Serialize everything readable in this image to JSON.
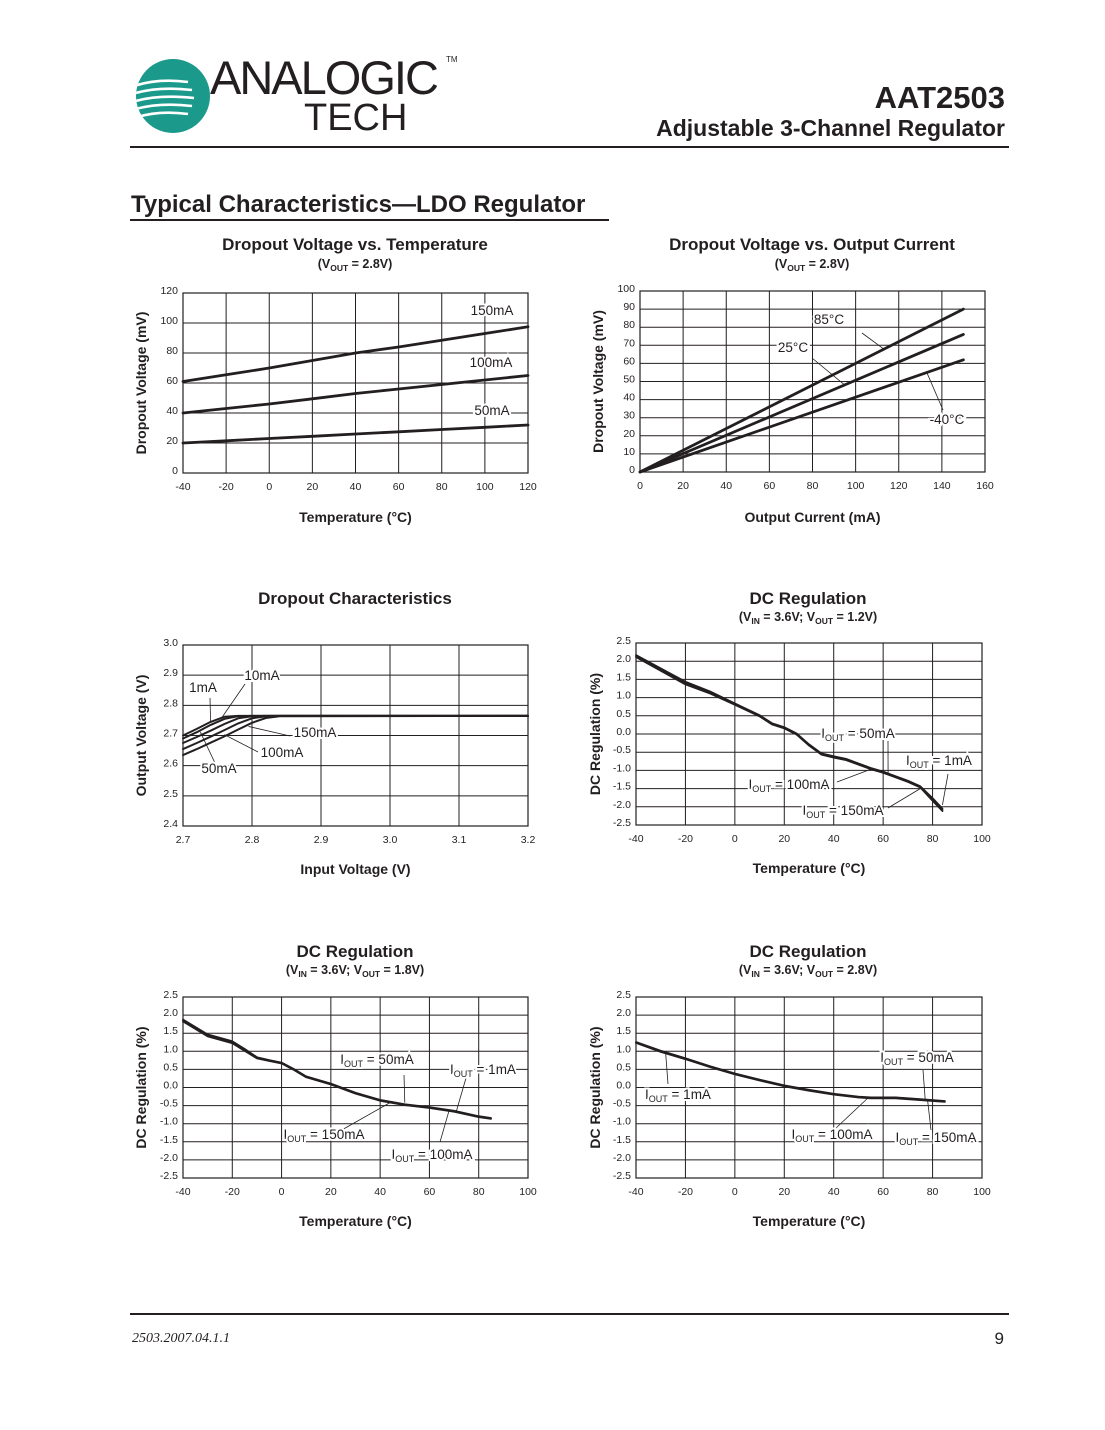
{
  "header": {
    "logo_text": "ANALOGIC",
    "logo_subtext": "TECH",
    "logo_tm": "TM",
    "part_number": "AAT2503",
    "product_title": "Adjustable 3-Channel Regulator",
    "brand_color": "#1b9a8c"
  },
  "section_title": "Typical Characteristics—LDO Regulator",
  "footer": {
    "doc_code": "2503.2007.04.1.1",
    "page_number": "9"
  },
  "chart_data": [
    {
      "type": "line",
      "title": "Dropout Voltage vs. Temperature",
      "subtitle": [
        {
          "t": "(V"
        },
        {
          "t": "OUT",
          "sub": true
        },
        {
          "t": " = 2.8V)"
        }
      ],
      "xlabel": "Temperature (°C)",
      "ylabel": "Dropout Voltage (mV)",
      "xlim": [
        -40,
        120
      ],
      "ylim": [
        0,
        120
      ],
      "grid": true,
      "xticks": [
        "-40",
        "-20",
        "0",
        "20",
        "40",
        "60",
        "80",
        "100",
        "120"
      ],
      "yticks": [
        "0",
        "20",
        "40",
        "60",
        "80",
        "100",
        "120"
      ],
      "x": [
        -40,
        -20,
        0,
        20,
        40,
        60,
        80,
        100,
        120
      ],
      "series": [
        {
          "name": "150mA",
          "values": [
            61,
            65.5,
            70,
            75,
            80,
            84,
            88.5,
            93,
            97.5
          ]
        },
        {
          "name": "100mA",
          "values": [
            40,
            43,
            46,
            49.5,
            53,
            56,
            59,
            62,
            65
          ]
        },
        {
          "name": "50mA",
          "values": [
            20,
            21.5,
            23,
            24.5,
            26,
            27.5,
            29,
            30.5,
            32
          ]
        }
      ],
      "annotations": [
        {
          "parts": [
            {
              "t": "150mA"
            }
          ]
        },
        {
          "parts": [
            {
              "t": "100mA"
            }
          ]
        },
        {
          "parts": [
            {
              "t": "50mA"
            }
          ]
        }
      ]
    },
    {
      "type": "line",
      "title": "Dropout Voltage vs. Output Current",
      "subtitle": [
        {
          "t": "(V"
        },
        {
          "t": "OUT",
          "sub": true
        },
        {
          "t": " = 2.8V)"
        }
      ],
      "xlabel": "Output Current (mA)",
      "ylabel": "Dropout Voltage (mV)",
      "xlim": [
        0,
        160
      ],
      "ylim": [
        0,
        100
      ],
      "grid": true,
      "xticks": [
        "0",
        "20",
        "40",
        "60",
        "80",
        "100",
        "120",
        "140",
        "160"
      ],
      "yticks": [
        "0",
        "10",
        "20",
        "30",
        "40",
        "50",
        "60",
        "70",
        "80",
        "90",
        "100"
      ],
      "x": [
        0,
        150
      ],
      "series": [
        {
          "name": "85°C",
          "values": [
            0,
            90
          ]
        },
        {
          "name": "25°C",
          "values": [
            0,
            76
          ]
        },
        {
          "name": "-40°C",
          "values": [
            0,
            62
          ]
        }
      ],
      "annotations": [
        {
          "parts": [
            {
              "t": "85°C"
            }
          ]
        },
        {
          "parts": [
            {
              "t": "25°C"
            }
          ]
        },
        {
          "parts": [
            {
              "t": "-40°C"
            }
          ]
        }
      ]
    },
    {
      "type": "line",
      "title": "Dropout Characteristics",
      "subtitle": [],
      "xlabel": "Input Voltage (V)",
      "ylabel": "Output Voltage (V)",
      "xlim": [
        2.7,
        3.2
      ],
      "ylim": [
        2.4,
        3.0
      ],
      "grid": true,
      "xticks": [
        "2.7",
        "2.8",
        "2.9",
        "3.0",
        "3.1",
        "3.2"
      ],
      "yticks": [
        "2.4",
        "2.5",
        "2.6",
        "2.7",
        "2.8",
        "2.9",
        "3.0"
      ],
      "x": [
        2.7,
        2.72,
        2.74,
        2.76,
        2.78,
        2.8,
        2.82,
        2.84,
        3.2
      ],
      "series": [
        {
          "name": "1mA",
          "values": [
            2.7,
            2.722,
            2.745,
            2.762,
            2.765,
            2.765,
            2.765,
            2.765,
            2.765
          ]
        },
        {
          "name": "10mA",
          "values": [
            2.69,
            2.711,
            2.735,
            2.755,
            2.764,
            2.765,
            2.765,
            2.765,
            2.765
          ]
        },
        {
          "name": "50mA",
          "values": [
            2.675,
            2.695,
            2.716,
            2.738,
            2.757,
            2.764,
            2.765,
            2.765,
            2.765
          ]
        },
        {
          "name": "100mA",
          "values": [
            2.655,
            2.675,
            2.696,
            2.718,
            2.74,
            2.757,
            2.764,
            2.765,
            2.765
          ]
        },
        {
          "name": "150mA",
          "values": [
            2.635,
            2.655,
            2.676,
            2.697,
            2.72,
            2.742,
            2.758,
            2.764,
            2.765
          ]
        }
      ],
      "annotations": [
        {
          "parts": [
            {
              "t": "1mA"
            }
          ]
        },
        {
          "parts": [
            {
              "t": "10mA"
            }
          ]
        },
        {
          "parts": [
            {
              "t": "150mA"
            }
          ]
        },
        {
          "parts": [
            {
              "t": "100mA"
            }
          ]
        },
        {
          "parts": [
            {
              "t": "50mA"
            }
          ]
        }
      ]
    },
    {
      "type": "line",
      "title": "DC Regulation",
      "subtitle": [
        {
          "t": "(V"
        },
        {
          "t": "IN",
          "sub": true
        },
        {
          "t": " = 3.6V; V"
        },
        {
          "t": "OUT",
          "sub": true
        },
        {
          "t": " = 1.2V)"
        }
      ],
      "xlabel": "Temperature (°C)",
      "ylabel": "DC Regulation (%)",
      "xlim": [
        -40,
        100
      ],
      "ylim": [
        -2.5,
        2.5
      ],
      "grid": true,
      "xticks": [
        "-40",
        "-20",
        "0",
        "20",
        "40",
        "60",
        "80",
        "100"
      ],
      "yticks": [
        "-2.5",
        "-2.0",
        "-1.5",
        "-1.0",
        "-0.5",
        "0.0",
        "0.5",
        "1.0",
        "1.5",
        "2.0",
        "2.5"
      ],
      "x": [
        -40,
        -20,
        -10,
        0,
        10,
        15,
        20,
        25,
        30,
        35,
        40,
        45,
        55,
        60,
        70,
        75,
        80,
        84
      ],
      "series": [
        {
          "name": "IOUT = 1mA",
          "values": [
            2.17,
            1.44,
            1.17,
            0.84,
            0.52,
            0.3,
            0.19,
            0.02,
            -0.28,
            -0.53,
            -0.61,
            -0.68,
            -0.93,
            -1.03,
            -1.28,
            -1.43,
            -1.76,
            -2.05
          ]
        },
        {
          "name": "IOUT = 50mA",
          "values": [
            2.15,
            1.42,
            1.15,
            0.82,
            0.5,
            0.28,
            0.17,
            0.0,
            -0.3,
            -0.55,
            -0.63,
            -0.7,
            -0.95,
            -1.05,
            -1.3,
            -1.45,
            -1.8,
            -2.08
          ]
        },
        {
          "name": "IOUT = 100mA",
          "values": [
            2.13,
            1.39,
            1.13,
            0.81,
            0.49,
            0.27,
            0.16,
            -0.01,
            -0.31,
            -0.56,
            -0.64,
            -0.71,
            -0.96,
            -1.06,
            -1.31,
            -1.46,
            -1.82,
            -2.1
          ]
        },
        {
          "name": "IOUT = 150mA",
          "values": [
            2.11,
            1.36,
            1.11,
            0.8,
            0.48,
            0.26,
            0.15,
            -0.02,
            -0.32,
            -0.57,
            -0.65,
            -0.72,
            -0.97,
            -1.07,
            -1.32,
            -1.47,
            -1.84,
            -2.12
          ]
        }
      ],
      "annotations": [
        {
          "parts": [
            {
              "t": "I"
            },
            {
              "t": "OUT",
              "sub": true
            },
            {
              "t": " = 50mA"
            }
          ]
        },
        {
          "parts": [
            {
              "t": "I"
            },
            {
              "t": "OUT",
              "sub": true
            },
            {
              "t": " = 1mA"
            }
          ]
        },
        {
          "parts": [
            {
              "t": "I"
            },
            {
              "t": "OUT",
              "sub": true
            },
            {
              "t": " = 100mA"
            }
          ]
        },
        {
          "parts": [
            {
              "t": "I"
            },
            {
              "t": "OUT",
              "sub": true
            },
            {
              "t": " = 150mA"
            }
          ]
        }
      ]
    },
    {
      "type": "line",
      "title": "DC Regulation",
      "subtitle": [
        {
          "t": "(V"
        },
        {
          "t": "IN",
          "sub": true
        },
        {
          "t": " = 3.6V; V"
        },
        {
          "t": "OUT",
          "sub": true
        },
        {
          "t": " = 1.8V)"
        }
      ],
      "xlabel": "Temperature (°C)",
      "ylabel": "DC Regulation (%)",
      "xlim": [
        -40,
        100
      ],
      "ylim": [
        -2.5,
        2.5
      ],
      "grid": true,
      "xticks": [
        "-40",
        "-20",
        "0",
        "20",
        "40",
        "60",
        "80",
        "100"
      ],
      "yticks": [
        "-2.5",
        "-2.0",
        "-1.5",
        "-1.0",
        "-0.5",
        "0.0",
        "0.5",
        "1.0",
        "1.5",
        "2.0",
        "2.5"
      ],
      "x": [
        -40,
        -30,
        -20,
        -15,
        -10,
        -5,
        0,
        5,
        10,
        20,
        30,
        40,
        50,
        60,
        70,
        80,
        85
      ],
      "series": [
        {
          "name": "IOUT = 1mA",
          "values": [
            1.88,
            1.47,
            1.28,
            1.07,
            0.84,
            0.76,
            0.69,
            0.51,
            0.31,
            0.11,
            -0.14,
            -0.34,
            -0.46,
            -0.54,
            -0.64,
            -0.79,
            -0.84
          ]
        },
        {
          "name": "IOUT = 50mA",
          "values": [
            1.86,
            1.45,
            1.26,
            1.05,
            0.82,
            0.75,
            0.68,
            0.5,
            0.3,
            0.1,
            -0.15,
            -0.35,
            -0.47,
            -0.55,
            -0.65,
            -0.8,
            -0.85
          ]
        },
        {
          "name": "IOUT = 100mA",
          "values": [
            1.84,
            1.43,
            1.24,
            1.03,
            0.81,
            0.74,
            0.67,
            0.49,
            0.29,
            0.09,
            -0.16,
            -0.36,
            -0.48,
            -0.56,
            -0.66,
            -0.81,
            -0.86
          ]
        },
        {
          "name": "IOUT = 150mA",
          "values": [
            1.82,
            1.41,
            1.22,
            1.01,
            0.8,
            0.73,
            0.66,
            0.48,
            0.28,
            0.08,
            -0.17,
            -0.37,
            -0.49,
            -0.57,
            -0.67,
            -0.82,
            -0.87
          ]
        }
      ],
      "annotations": [
        {
          "parts": [
            {
              "t": "I"
            },
            {
              "t": "OUT",
              "sub": true
            },
            {
              "t": " = 50mA"
            }
          ]
        },
        {
          "parts": [
            {
              "t": "I"
            },
            {
              "t": "OUT",
              "sub": true
            },
            {
              "t": " = 1mA"
            }
          ]
        },
        {
          "parts": [
            {
              "t": "I"
            },
            {
              "t": "OUT",
              "sub": true
            },
            {
              "t": " = 150mA"
            }
          ]
        },
        {
          "parts": [
            {
              "t": "I"
            },
            {
              "t": "OUT",
              "sub": true
            },
            {
              "t": " = 100mA"
            }
          ]
        }
      ]
    },
    {
      "type": "line",
      "title": "DC Regulation",
      "subtitle": [
        {
          "t": "(V"
        },
        {
          "t": "IN",
          "sub": true
        },
        {
          "t": " = 3.6V; V"
        },
        {
          "t": "OUT",
          "sub": true
        },
        {
          "t": " = 2.8V)"
        }
      ],
      "xlabel": "Temperature (°C)",
      "ylabel": "DC Regulation (%)",
      "xlim": [
        -40,
        100
      ],
      "ylim": [
        -2.5,
        2.5
      ],
      "grid": true,
      "xticks": [
        "-40",
        "-20",
        "0",
        "20",
        "40",
        "60",
        "80",
        "100"
      ],
      "yticks": [
        "-2.5",
        "-2.0",
        "-1.5",
        "-1.0",
        "-0.5",
        "0.0",
        "0.5",
        "1.0",
        "1.5",
        "2.0",
        "2.5"
      ],
      "x": [
        -40,
        -30,
        -20,
        -10,
        0,
        10,
        20,
        30,
        40,
        50,
        55,
        65,
        75,
        85
      ],
      "series": [
        {
          "name": "IOUT = 1mA",
          "values": [
            1.26,
            1.02,
            0.81,
            0.59,
            0.39,
            0.22,
            0.06,
            -0.06,
            -0.17,
            -0.25,
            -0.27,
            -0.27,
            -0.32,
            -0.37
          ]
        },
        {
          "name": "IOUT = 50mA",
          "values": [
            1.25,
            1.0,
            0.8,
            0.58,
            0.38,
            0.21,
            0.05,
            -0.07,
            -0.18,
            -0.26,
            -0.28,
            -0.28,
            -0.33,
            -0.38
          ]
        },
        {
          "name": "IOUT = 100mA",
          "values": [
            1.24,
            0.99,
            0.79,
            0.57,
            0.37,
            0.2,
            0.04,
            -0.08,
            -0.19,
            -0.27,
            -0.29,
            -0.29,
            -0.34,
            -0.39
          ]
        },
        {
          "name": "IOUT = 150mA",
          "values": [
            1.23,
            0.98,
            0.78,
            0.56,
            0.36,
            0.19,
            0.03,
            -0.09,
            -0.2,
            -0.28,
            -0.3,
            -0.3,
            -0.35,
            -0.4
          ]
        }
      ],
      "annotations": [
        {
          "parts": [
            {
              "t": "I"
            },
            {
              "t": "OUT",
              "sub": true
            },
            {
              "t": " = 50mA"
            }
          ]
        },
        {
          "parts": [
            {
              "t": "I"
            },
            {
              "t": "OUT",
              "sub": true
            },
            {
              "t": " = 1mA"
            }
          ]
        },
        {
          "parts": [
            {
              "t": "I"
            },
            {
              "t": "OUT",
              "sub": true
            },
            {
              "t": " = 100mA"
            }
          ]
        },
        {
          "parts": [
            {
              "t": "I"
            },
            {
              "t": "OUT",
              "sub": true
            },
            {
              "t": " = 150mA"
            }
          ]
        }
      ]
    }
  ]
}
